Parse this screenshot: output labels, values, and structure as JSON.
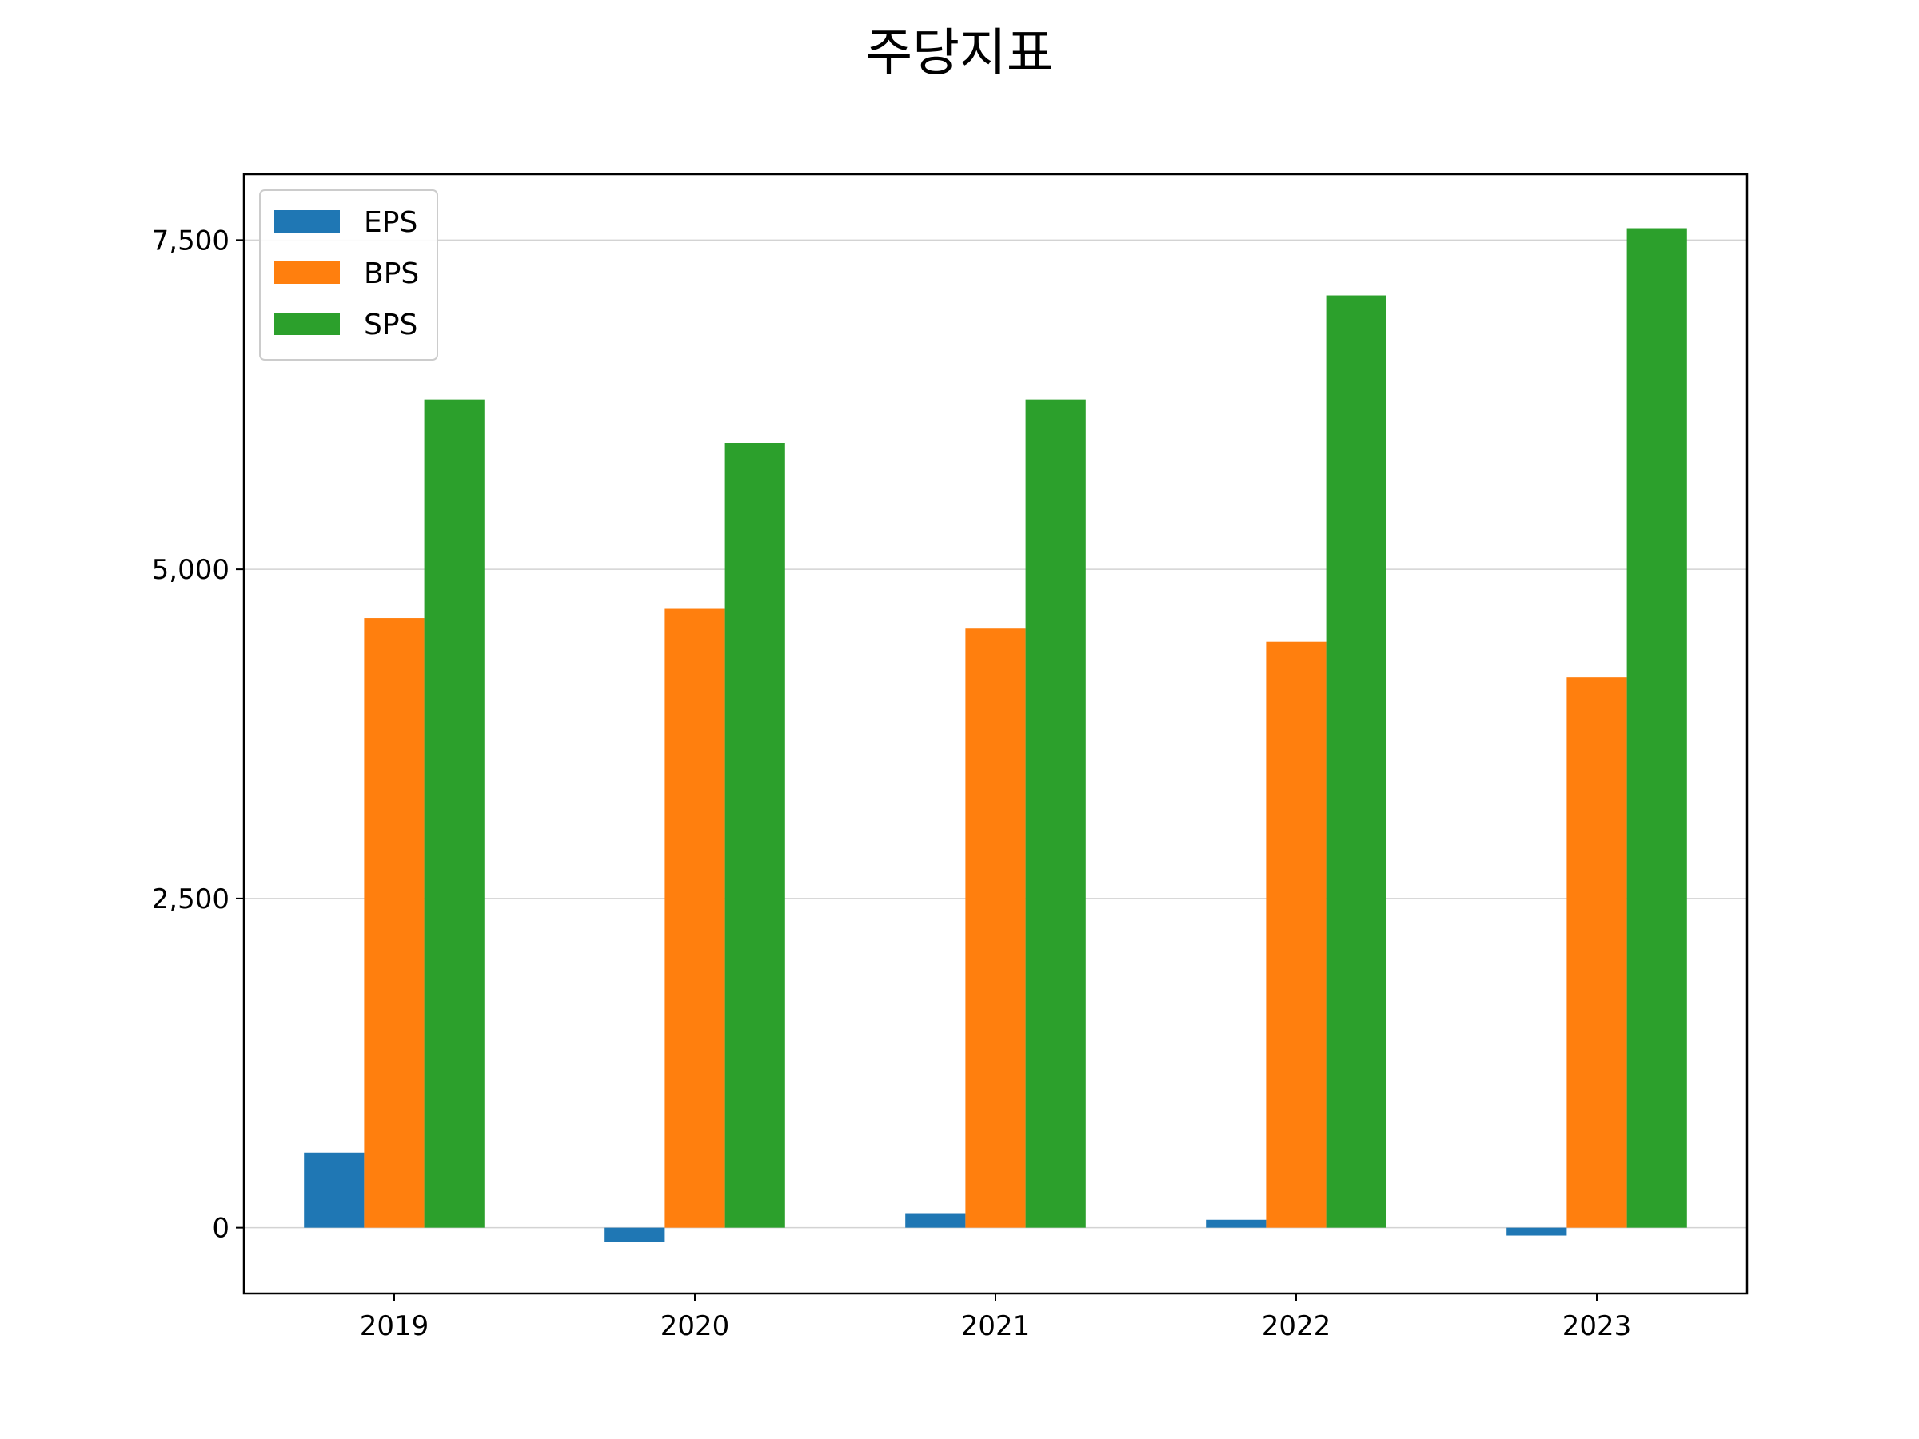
{
  "chart_data": {
    "type": "bar",
    "title": "주당지표",
    "xlabel": "",
    "ylabel": "",
    "categories": [
      "2019",
      "2020",
      "2021",
      "2022",
      "2023"
    ],
    "series": [
      {
        "name": "EPS",
        "color": "#1f77b4",
        "values": [
          570,
          -110,
          110,
          60,
          -60
        ]
      },
      {
        "name": "BPS",
        "color": "#ff7f0e",
        "values": [
          4630,
          4700,
          4550,
          4450,
          4180
        ]
      },
      {
        "name": "SPS",
        "color": "#2ca02c",
        "values": [
          6290,
          5960,
          6290,
          7080,
          7590
        ]
      }
    ],
    "ylim": [
      -500,
      8000
    ],
    "yticks": [
      0,
      2500,
      5000,
      7500
    ],
    "ytick_labels": [
      "0",
      "2,500",
      "5,000",
      "7,500"
    ],
    "grid": "horizontal",
    "legend_position": "top-left"
  }
}
